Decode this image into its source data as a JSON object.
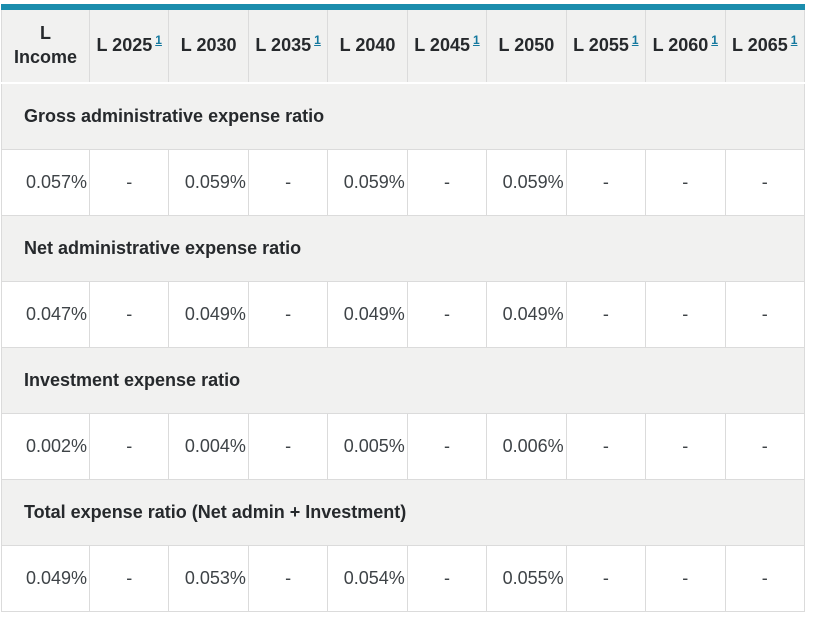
{
  "colors": {
    "top_bar": "#1b8dad",
    "footnote_link": "#14789e",
    "row_shade": "#f1f1f0",
    "border": "#dbdbdb",
    "heading_text": "#26292c",
    "value_text": "#3e4347"
  },
  "table": {
    "columns": [
      {
        "label": "L Income",
        "footnote": null,
        "two_line": true
      },
      {
        "label": "L 2025",
        "footnote": "1"
      },
      {
        "label": "L 2030",
        "footnote": null
      },
      {
        "label": "L 2035",
        "footnote": "1"
      },
      {
        "label": "L 2040",
        "footnote": null
      },
      {
        "label": "L 2045",
        "footnote": "1"
      },
      {
        "label": "L 2050",
        "footnote": null
      },
      {
        "label": "L 2055",
        "footnote": "1"
      },
      {
        "label": "L 2060",
        "footnote": "1"
      },
      {
        "label": "L 2065",
        "footnote": "1"
      }
    ],
    "sections": [
      {
        "title": "Gross administrative expense ratio",
        "values": [
          "0.057%",
          "-",
          "0.059%",
          "-",
          "0.059%",
          "-",
          "0.059%",
          "-",
          "-",
          "-"
        ]
      },
      {
        "title": "Net administrative expense ratio",
        "values": [
          "0.047%",
          "-",
          "0.049%",
          "-",
          "0.049%",
          "-",
          "0.049%",
          "-",
          "-",
          "-"
        ]
      },
      {
        "title": "Investment expense ratio",
        "values": [
          "0.002%",
          "-",
          "0.004%",
          "-",
          "0.005%",
          "-",
          "0.006%",
          "-",
          "-",
          "-"
        ]
      },
      {
        "title": "Total expense ratio (Net admin + Investment)",
        "values": [
          "0.049%",
          "-",
          "0.053%",
          "-",
          "0.054%",
          "-",
          "0.055%",
          "-",
          "-",
          "-"
        ]
      }
    ]
  }
}
